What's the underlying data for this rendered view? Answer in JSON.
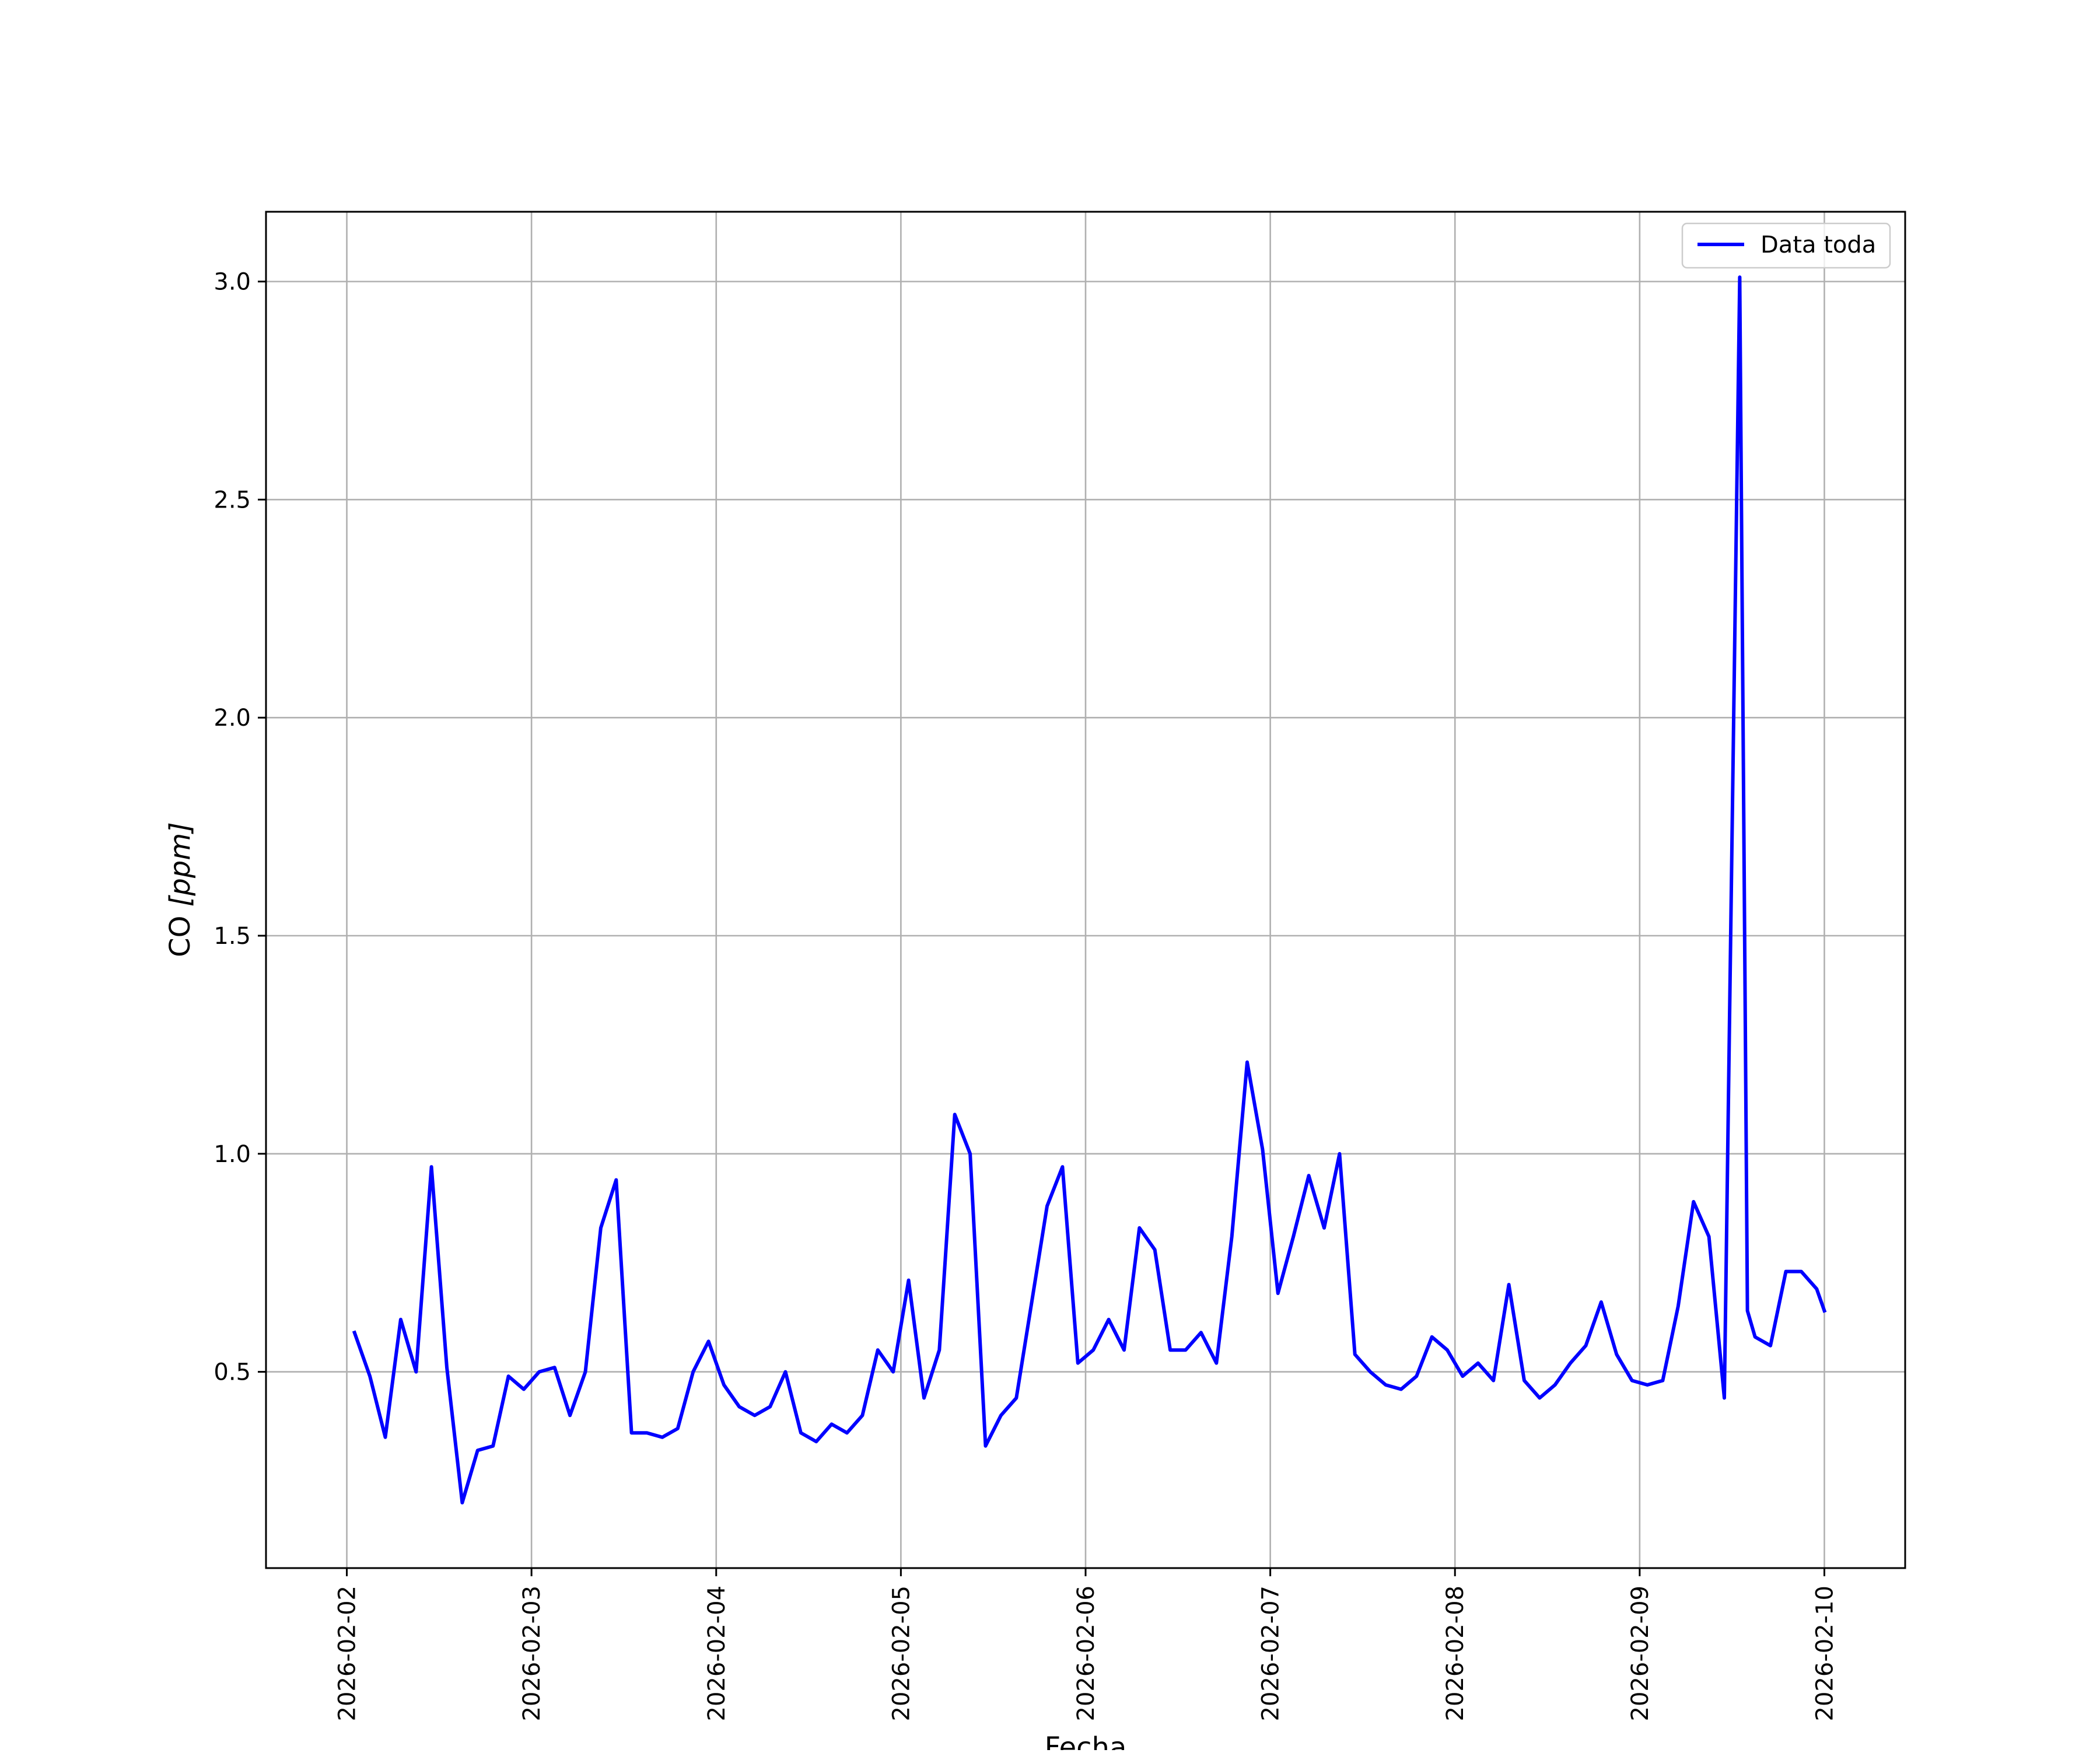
{
  "chart_data": {
    "type": "line",
    "title": "",
    "xlabel": "Fecha",
    "ylabel_text": "CO ",
    "ylabel_unit": "[ppm]",
    "xlim": [
      "2026-02-01T13:30",
      "2026-02-10T10:30"
    ],
    "ylim": [
      0.05,
      3.16
    ],
    "grid": true,
    "legend_position": "top-right",
    "x_ticks": [
      "2026-02-02",
      "2026-02-03",
      "2026-02-04",
      "2026-02-05",
      "2026-02-06",
      "2026-02-07",
      "2026-02-08",
      "2026-02-09",
      "2026-02-10"
    ],
    "y_ticks": [
      "0.5",
      "1.0",
      "1.5",
      "2.0",
      "2.5",
      "3.0"
    ],
    "series": [
      {
        "name": "Data toda",
        "color": "#0000ff",
        "x": [
          "2026-02-02T01:00",
          "2026-02-02T03:00",
          "2026-02-02T05:00",
          "2026-02-02T07:00",
          "2026-02-02T09:00",
          "2026-02-02T11:00",
          "2026-02-02T13:00",
          "2026-02-02T15:00",
          "2026-02-02T17:00",
          "2026-02-02T19:00",
          "2026-02-02T21:00",
          "2026-02-02T23:00",
          "2026-02-03T01:00",
          "2026-02-03T03:00",
          "2026-02-03T05:00",
          "2026-02-03T07:00",
          "2026-02-03T09:00",
          "2026-02-03T11:00",
          "2026-02-03T13:00",
          "2026-02-03T15:00",
          "2026-02-03T17:00",
          "2026-02-03T19:00",
          "2026-02-03T21:00",
          "2026-02-03T23:00",
          "2026-02-04T01:00",
          "2026-02-04T03:00",
          "2026-02-04T05:00",
          "2026-02-04T07:00",
          "2026-02-04T09:00",
          "2026-02-04T11:00",
          "2026-02-04T13:00",
          "2026-02-04T15:00",
          "2026-02-04T17:00",
          "2026-02-04T19:00",
          "2026-02-04T21:00",
          "2026-02-04T23:00",
          "2026-02-05T01:00",
          "2026-02-05T03:00",
          "2026-02-05T05:00",
          "2026-02-05T07:00",
          "2026-02-05T09:00",
          "2026-02-05T11:00",
          "2026-02-05T13:00",
          "2026-02-05T15:00",
          "2026-02-05T17:00",
          "2026-02-05T19:00",
          "2026-02-05T21:00",
          "2026-02-05T23:00",
          "2026-02-06T01:00",
          "2026-02-06T03:00",
          "2026-02-06T05:00",
          "2026-02-06T07:00",
          "2026-02-06T09:00",
          "2026-02-06T11:00",
          "2026-02-06T13:00",
          "2026-02-06T15:00",
          "2026-02-06T17:00",
          "2026-02-06T19:00",
          "2026-02-06T21:00",
          "2026-02-06T23:00",
          "2026-02-07T01:00",
          "2026-02-07T03:00",
          "2026-02-07T05:00",
          "2026-02-07T07:00",
          "2026-02-07T09:00",
          "2026-02-07T11:00",
          "2026-02-07T13:00",
          "2026-02-07T15:00",
          "2026-02-07T17:00",
          "2026-02-07T19:00",
          "2026-02-07T21:00",
          "2026-02-07T23:00",
          "2026-02-08T01:00",
          "2026-02-08T03:00",
          "2026-02-08T05:00",
          "2026-02-08T07:00",
          "2026-02-08T09:00",
          "2026-02-08T11:00",
          "2026-02-08T13:00",
          "2026-02-08T15:00",
          "2026-02-08T17:00",
          "2026-02-08T19:00",
          "2026-02-08T21:00",
          "2026-02-08T23:00",
          "2026-02-09T01:00",
          "2026-02-09T03:00",
          "2026-02-09T05:00",
          "2026-02-09T07:00",
          "2026-02-09T09:00",
          "2026-02-09T11:00",
          "2026-02-09T13:00",
          "2026-02-09T14:00",
          "2026-02-09T15:00",
          "2026-02-09T17:00",
          "2026-02-09T19:00",
          "2026-02-09T21:00",
          "2026-02-09T23:00",
          "2026-02-10T00:00"
        ],
        "y": [
          0.59,
          0.49,
          0.35,
          0.62,
          0.5,
          0.97,
          0.51,
          0.2,
          0.32,
          0.33,
          0.49,
          0.46,
          0.5,
          0.51,
          0.4,
          0.5,
          0.83,
          0.94,
          0.36,
          0.36,
          0.35,
          0.37,
          0.5,
          0.57,
          0.47,
          0.42,
          0.4,
          0.42,
          0.5,
          0.36,
          0.34,
          0.38,
          0.36,
          0.4,
          0.55,
          0.5,
          0.71,
          0.44,
          0.55,
          1.09,
          1.0,
          0.33,
          0.4,
          0.44,
          0.66,
          0.88,
          0.97,
          0.52,
          0.55,
          0.62,
          0.55,
          0.83,
          0.78,
          0.55,
          0.55,
          0.59,
          0.52,
          0.81,
          1.21,
          1.01,
          0.68,
          0.81,
          0.95,
          0.83,
          1.0,
          0.54,
          0.5,
          0.47,
          0.46,
          0.49,
          0.58,
          0.55,
          0.49,
          0.52,
          0.48,
          0.7,
          0.48,
          0.44,
          0.47,
          0.52,
          0.56,
          0.66,
          0.54,
          0.48,
          0.47,
          0.48,
          0.65,
          0.89,
          0.81,
          0.44,
          3.01,
          0.64,
          0.58,
          0.56,
          0.73,
          0.73,
          0.69,
          0.64
        ]
      }
    ]
  }
}
